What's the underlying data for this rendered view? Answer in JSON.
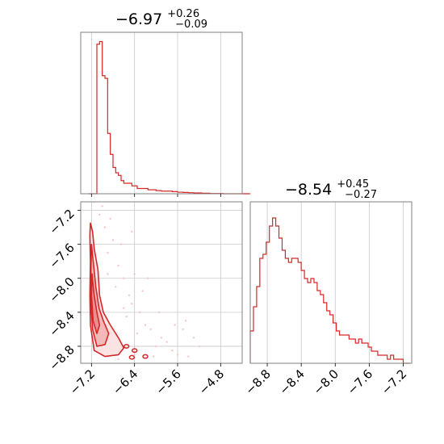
{
  "chart_data": {
    "type": "corner",
    "colors": {
      "line": "#d62728",
      "fill": "#f5c6c6",
      "grid": "#c8c8c8",
      "axes": "#808080"
    },
    "grid": true,
    "parameters": [
      {
        "median": "−6.97",
        "plus": "+0.26",
        "minus": "−0.09",
        "range": [
          -7.4,
          -4.4
        ]
      },
      {
        "median": "−8.54",
        "plus": "+0.45",
        "minus": "−0.27",
        "range": [
          -9.0,
          -7.1
        ]
      }
    ],
    "histogram_1": {
      "bin_start": -7.25,
      "bin_width": 0.05,
      "counts": [
        0,
        0,
        0,
        57,
        58,
        45,
        44,
        23,
        15,
        10,
        8,
        7,
        5,
        4,
        4,
        4,
        3,
        3,
        2,
        2,
        2,
        2,
        1.5,
        1.5,
        1.5,
        1.2,
        1.2,
        1,
        1,
        1,
        1,
        0.8,
        0.8,
        0.6,
        0.6,
        0.5,
        0.5,
        0.4,
        0.4,
        0.3,
        0.3,
        0.3,
        0.2,
        0.2,
        0.2,
        0.1,
        0.1,
        0.1,
        0.1,
        0.1,
        0,
        0,
        0,
        0,
        0,
        0,
        0,
        0,
        0,
        0
      ],
      "ylim": [
        0,
        60
      ]
    },
    "histogram_2": {
      "bin_start": -9.0,
      "bin_width": 0.0375,
      "counts": [
        8,
        14,
        19,
        26,
        27,
        30,
        34,
        36,
        34,
        31,
        28,
        26,
        25,
        26,
        26,
        25,
        23,
        21,
        20,
        21,
        20,
        18,
        17,
        15,
        13,
        12,
        10,
        8,
        7,
        7,
        7,
        6,
        6,
        5,
        6,
        5,
        5,
        4,
        3,
        3,
        2,
        2,
        2,
        1,
        2,
        1,
        1,
        1,
        0,
        0
      ],
      "ylim": [
        0,
        37
      ]
    },
    "ticks_x1": [
      -7.2,
      -6.4,
      -5.6,
      -4.8
    ],
    "tick_labels_x1": [
      "−7.2",
      "−6.4",
      "−5.6",
      "−4.8"
    ],
    "ticks_y2": [
      -7.2,
      -7.6,
      -8.0,
      -8.4,
      -8.8
    ],
    "tick_labels_y2": [
      "−7.2",
      "−7.6",
      "−8.0",
      "−8.4",
      "−8.8"
    ],
    "ticks_x2": [
      -8.8,
      -8.4,
      -8.0,
      -7.6,
      -7.2
    ],
    "tick_labels_x2": [
      "−8.8",
      "−8.4",
      "−8.0",
      "−7.6",
      "−7.2"
    ],
    "contour_levels": [
      {
        "points": [
          [
            -7.22,
            -7.35
          ],
          [
            -7.18,
            -7.45
          ],
          [
            -7.15,
            -7.65
          ],
          [
            -7.08,
            -7.9
          ],
          [
            -7.05,
            -8.2
          ],
          [
            -6.98,
            -8.4
          ],
          [
            -6.85,
            -8.55
          ],
          [
            -6.7,
            -8.7
          ],
          [
            -6.6,
            -8.82
          ],
          [
            -6.7,
            -8.9
          ],
          [
            -6.95,
            -8.92
          ],
          [
            -7.15,
            -8.85
          ],
          [
            -7.22,
            -8.55
          ],
          [
            -7.23,
            -8.2
          ],
          [
            -7.22,
            -7.8
          ],
          [
            -7.23,
            -7.5
          ]
        ]
      },
      {
        "points": [
          [
            -7.2,
            -7.6
          ],
          [
            -7.16,
            -7.85
          ],
          [
            -7.12,
            -8.1
          ],
          [
            -7.06,
            -8.35
          ],
          [
            -6.98,
            -8.5
          ],
          [
            -6.88,
            -8.65
          ],
          [
            -6.95,
            -8.78
          ],
          [
            -7.1,
            -8.8
          ],
          [
            -7.18,
            -8.6
          ],
          [
            -7.21,
            -8.3
          ],
          [
            -7.21,
            -7.9
          ]
        ]
      },
      {
        "points": [
          [
            -7.19,
            -7.95
          ],
          [
            -7.15,
            -8.2
          ],
          [
            -7.1,
            -8.4
          ],
          [
            -7.05,
            -8.55
          ],
          [
            -7.1,
            -8.65
          ],
          [
            -7.17,
            -8.5
          ],
          [
            -7.2,
            -8.2
          ]
        ]
      }
    ],
    "scatter_points": [
      [
        -7.15,
        -7.1
      ],
      [
        -7.05,
        -7.25
      ],
      [
        -6.95,
        -7.4
      ],
      [
        -6.8,
        -7.55
      ],
      [
        -6.9,
        -7.7
      ],
      [
        -6.7,
        -7.85
      ],
      [
        -6.6,
        -8.0
      ],
      [
        -6.75,
        -8.1
      ],
      [
        -6.5,
        -8.2
      ],
      [
        -6.45,
        -8.3
      ],
      [
        -6.3,
        -8.4
      ],
      [
        -6.55,
        -8.45
      ],
      [
        -6.2,
        -8.55
      ],
      [
        -6.1,
        -8.6
      ],
      [
        -6.35,
        -8.65
      ],
      [
        -5.9,
        -8.7
      ],
      [
        -5.8,
        -8.75
      ],
      [
        -6.0,
        -8.8
      ],
      [
        -5.7,
        -8.85
      ],
      [
        -5.6,
        -8.9
      ],
      [
        -5.4,
        -8.92
      ],
      [
        -5.5,
        -8.6
      ],
      [
        -5.2,
        -8.8
      ],
      [
        -6.85,
        -7.3
      ],
      [
        -7.0,
        -7.15
      ],
      [
        -6.65,
        -7.6
      ],
      [
        -6.4,
        -7.95
      ],
      [
        -6.25,
        -8.15
      ],
      [
        -6.9,
        -7.95
      ],
      [
        -6.6,
        -8.35
      ],
      [
        -7.1,
        -7.0
      ],
      [
        -6.45,
        -7.45
      ],
      [
        -6.15,
        -8.0
      ],
      [
        -5.95,
        -8.4
      ],
      [
        -5.65,
        -8.55
      ],
      [
        -5.3,
        -8.7
      ],
      [
        -5.45,
        -8.5
      ],
      [
        -6.7,
        -8.95
      ],
      [
        -6.4,
        -8.9
      ],
      [
        -6.05,
        -8.92
      ]
    ],
    "dense_blobs": [
      [
        -6.55,
        -8.8
      ],
      [
        -6.4,
        -8.85
      ],
      [
        -6.2,
        -8.92
      ],
      [
        -6.45,
        -8.93
      ]
    ]
  }
}
